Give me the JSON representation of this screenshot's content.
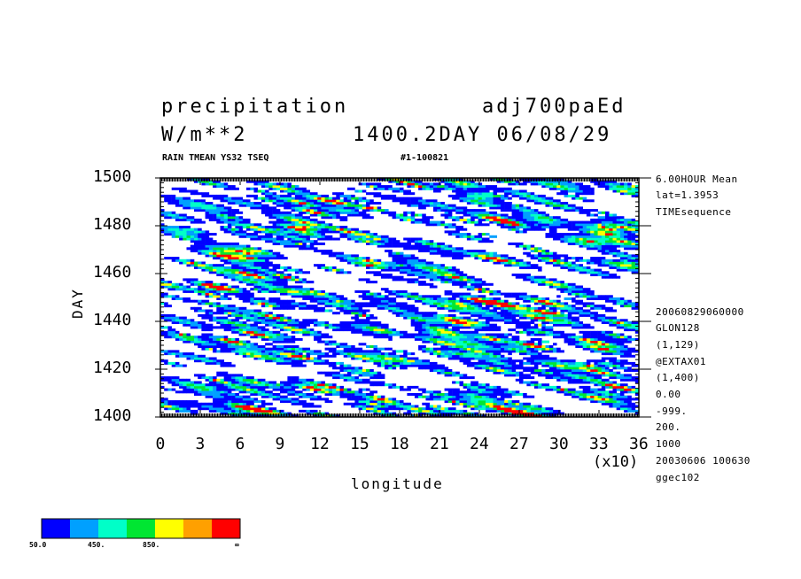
{
  "header": {
    "title_left": "precipitation",
    "title_right": "adj700paEd",
    "units": "W/m**2",
    "time_info": "1400.2DAY 06/08/29",
    "subtitle_left": "RAIN TMEAN YS32 TSEQ",
    "subtitle_right": "#1-100821"
  },
  "side_info": {
    "top": [
      "6.00HOUR Mean",
      "lat=1.3953",
      "TIMEsequence"
    ],
    "bottom": [
      "20060829060000",
      "GLON128",
      "(1,129)",
      "@EXTAX01",
      "(1,400)",
      "0.00",
      "-999.",
      "200.",
      "1000",
      "20030606 100630",
      "ggec102"
    ]
  },
  "axes": {
    "x_label": "longitude",
    "y_label": "DAY",
    "x_multiplier": "(x10)"
  },
  "colorbar": {
    "colors": [
      "#0000ff",
      "#00a0ff",
      "#00ffc8",
      "#00e632",
      "#ffff00",
      "#ffa000",
      "#ff0000"
    ],
    "labels": [
      "50.0",
      "450.",
      "850.",
      "∞"
    ]
  },
  "chart_data": {
    "type": "heatmap",
    "title": "precipitation",
    "xlabel": "longitude",
    "ylabel": "DAY",
    "x_ticks": [
      "0",
      "3",
      "6",
      "9",
      "12",
      "15",
      "18",
      "21",
      "24",
      "27",
      "30",
      "33",
      "36"
    ],
    "y_ticks": [
      "1400",
      "1420",
      "1440",
      "1460",
      "1480",
      "1500"
    ],
    "xlim": [
      0,
      36
    ],
    "ylim": [
      1400,
      1500
    ],
    "levels": [
      50,
      250,
      450,
      650,
      850,
      1050
    ],
    "colors": [
      "#0000ff",
      "#00a0ff",
      "#00ffc8",
      "#00e632",
      "#ffff00",
      "#ffa000",
      "#ff0000"
    ],
    "grid": false
  }
}
